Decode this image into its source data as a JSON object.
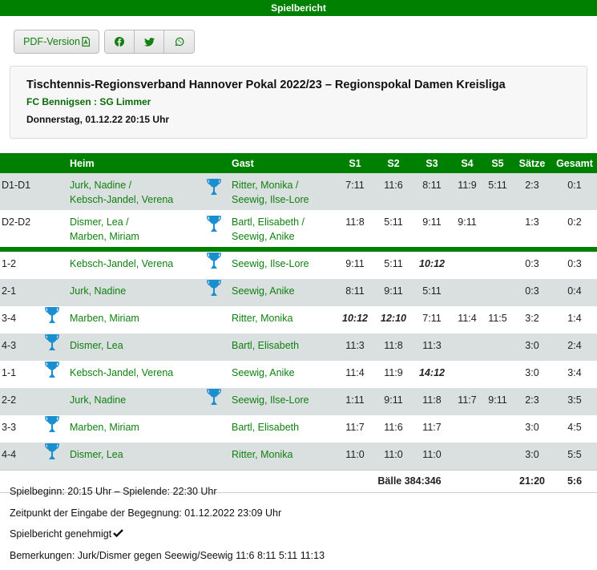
{
  "page_title": "Spielbericht",
  "toolbar": {
    "pdf_label": "PDF-Version",
    "share": [
      "facebook-icon",
      "twitter-icon",
      "whatsapp-icon"
    ]
  },
  "match": {
    "competition": "Tischtennis-Regionsverband Hannover Pokal 2022/23 – Regionspokal Damen Kreisliga",
    "teams": "FC Bennigsen : SG Limmer",
    "date": "Donnerstag, 01.12.22 20:15 Uhr"
  },
  "colors": {
    "brand": "#008000",
    "trophy": "#1a8fd0",
    "alt_row": "#dadfdf"
  },
  "table": {
    "headers": {
      "heim": "Heim",
      "gast": "Gast",
      "s1": "S1",
      "s2": "S2",
      "s3": "S3",
      "s4": "S4",
      "s5": "S5",
      "saetze": "Sätze",
      "gesamt": "Gesamt"
    },
    "doubles": [
      {
        "label": "D1-D1",
        "heim": [
          "Jurk, Nadine /",
          "Kebsch-Jandel, Verena"
        ],
        "gast": [
          "Ritter, Monika /",
          "Seewig, Ilse-Lore"
        ],
        "winner": "gast",
        "sets": [
          "7:11",
          "11:6",
          "8:11",
          "11:9",
          "5:11"
        ],
        "bold_sets": [],
        "saetze": "2:3",
        "gesamt": "0:1"
      },
      {
        "label": "D2-D2",
        "heim": [
          "Dismer, Lea /",
          "Marben, Miriam"
        ],
        "gast": [
          "Bartl, Elisabeth /",
          "Seewig, Anike"
        ],
        "winner": "gast",
        "sets": [
          "11:8",
          "5:11",
          "9:11",
          "9:11",
          ""
        ],
        "bold_sets": [],
        "saetze": "1:3",
        "gesamt": "0:2"
      }
    ],
    "singles": [
      {
        "label": "1-2",
        "heim": "Kebsch-Jandel, Verena",
        "gast": "Seewig, Ilse-Lore",
        "winner": "gast",
        "sets": [
          "9:11",
          "5:11",
          "10:12",
          "",
          ""
        ],
        "bold_sets": [
          2
        ],
        "saetze": "0:3",
        "gesamt": "0:3"
      },
      {
        "label": "2-1",
        "heim": "Jurk, Nadine",
        "gast": "Seewig, Anike",
        "winner": "gast",
        "sets": [
          "8:11",
          "9:11",
          "5:11",
          "",
          ""
        ],
        "bold_sets": [],
        "saetze": "0:3",
        "gesamt": "0:4"
      },
      {
        "label": "3-4",
        "heim": "Marben, Miriam",
        "gast": "Ritter, Monika",
        "winner": "heim",
        "sets": [
          "10:12",
          "12:10",
          "7:11",
          "11:4",
          "11:5"
        ],
        "bold_sets": [
          0,
          1
        ],
        "saetze": "3:2",
        "gesamt": "1:4"
      },
      {
        "label": "4-3",
        "heim": "Dismer, Lea",
        "gast": "Bartl, Elisabeth",
        "winner": "heim",
        "sets": [
          "11:3",
          "11:8",
          "11:3",
          "",
          ""
        ],
        "bold_sets": [],
        "saetze": "3:0",
        "gesamt": "2:4"
      },
      {
        "label": "1-1",
        "heim": "Kebsch-Jandel, Verena",
        "gast": "Seewig, Anike",
        "winner": "heim",
        "sets": [
          "11:4",
          "11:9",
          "14:12",
          "",
          ""
        ],
        "bold_sets": [
          2
        ],
        "saetze": "3:0",
        "gesamt": "3:4"
      },
      {
        "label": "2-2",
        "heim": "Jurk, Nadine",
        "gast": "Seewig, Ilse-Lore",
        "winner": "gast",
        "sets": [
          "1:11",
          "9:11",
          "11:8",
          "11:7",
          "9:11"
        ],
        "bold_sets": [],
        "saetze": "2:3",
        "gesamt": "3:5"
      },
      {
        "label": "3-3",
        "heim": "Marben, Miriam",
        "gast": "Bartl, Elisabeth",
        "winner": "heim",
        "sets": [
          "11:7",
          "11:6",
          "11:7",
          "",
          ""
        ],
        "bold_sets": [],
        "saetze": "3:0",
        "gesamt": "4:5"
      },
      {
        "label": "4-4",
        "heim": "Dismer, Lea",
        "gast": "Ritter, Monika",
        "winner": "heim",
        "sets": [
          "11:0",
          "11:0",
          "11:0",
          "",
          ""
        ],
        "bold_sets": [],
        "saetze": "3:0",
        "gesamt": "5:5"
      }
    ],
    "footer": {
      "baelle": "Bälle 384:346",
      "saetze": "21:20",
      "gesamt": "5:6"
    }
  },
  "notes": {
    "times": "Spielbeginn: 20:15 Uhr – Spielende: 22:30 Uhr",
    "entry": "Zeitpunkt der Eingabe der Begegnung: 01.12.2022 23:09 Uhr",
    "approved": "Spielbericht genehmigt",
    "remarks": "Bemerkungen: Jurk/Dismer gegen Seewig/Seewig 11:6 8:11 5:11 11:13"
  }
}
